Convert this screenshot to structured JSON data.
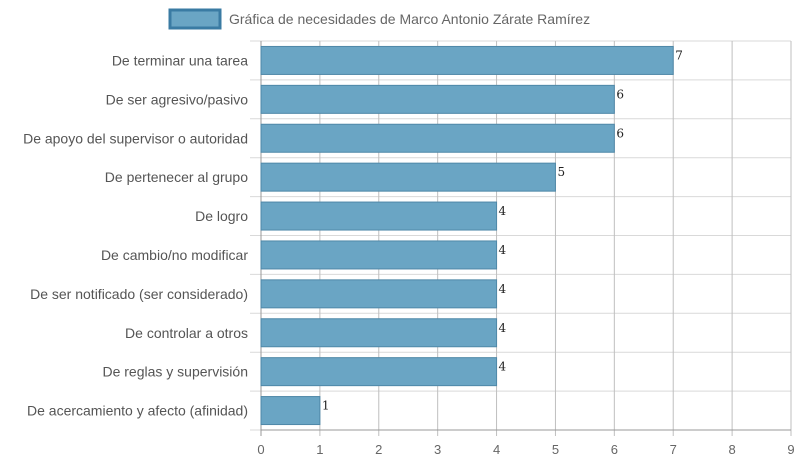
{
  "chart_data": {
    "type": "bar",
    "orientation": "horizontal",
    "title": "",
    "legend": {
      "position": "top",
      "entries": [
        "Gráfica de necesidades de Marco Antonio Zárate Ramírez"
      ]
    },
    "categories": [
      "De terminar una tarea",
      "De ser agresivo/pasivo",
      "De apoyo del supervisor o autoridad",
      "De pertenecer al grupo",
      "De logro",
      "De cambio/no modificar",
      "De ser notificado (ser considerado)",
      "De controlar a otros",
      "De reglas y supervisión",
      "De acercamiento y afecto (afinidad)"
    ],
    "series": [
      {
        "name": "Gráfica de necesidades de Marco Antonio Zárate Ramírez",
        "values": [
          7,
          6,
          6,
          5,
          4,
          4,
          4,
          4,
          4,
          1
        ]
      }
    ],
    "xlim": [
      0,
      9
    ],
    "xticks": [
      "0",
      "1",
      "2",
      "3",
      "4",
      "5",
      "6",
      "7",
      "8",
      "9"
    ],
    "grid": true,
    "data_labels": true
  },
  "colors": {
    "bar_fill": "#6aa5c4",
    "bar_stroke": "#4f88a8",
    "legend_stroke": "#3a7ba3",
    "grid": "#d9d9d9",
    "axis": "#999999"
  }
}
